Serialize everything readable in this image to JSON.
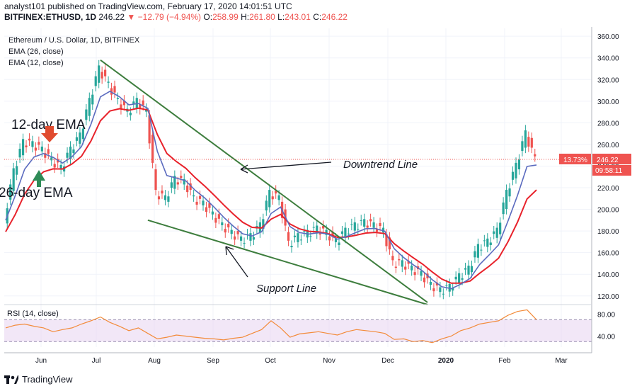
{
  "header": {
    "line1": "analyst101 published on TradingView.com, February 17, 2020 14:01:51 UTC",
    "symbol": "BITFINEX:ETHUSD, 1D",
    "last": "246.22",
    "change": "−12.79 (−4.94%)",
    "o_label": "O:",
    "o": "258.99",
    "h_label": "H:",
    "h": "261.80",
    "l_label": "L:",
    "l": "243.01",
    "c_label": "C:",
    "c": "246.22"
  },
  "legend": {
    "title": "Ethereum / U.S. Dollar, 1D, BITFINEX",
    "ema26": "EMA (26, close)",
    "ema12": "EMA (12, close)",
    "rsi": "RSI (14, close)"
  },
  "annotations": {
    "ema12": "12-day EMA",
    "ema26": "26-day EMA",
    "downtrend": "Downtrend Line",
    "support": "Support Line"
  },
  "price_tags": {
    "pct": "13.73%",
    "price": "246.22",
    "countdown": "09:58:11"
  },
  "branding": "TradingView",
  "colors": {
    "up": "#26a69a",
    "down": "#ef5350",
    "ema12": "#5b6bbf",
    "ema26": "#e8222b",
    "trend": "#3d7d3d",
    "rsi": "#f38b3a",
    "rsi_band": "#e9d7f2"
  },
  "chart_data": {
    "type": "candlestick",
    "title": "Ethereum / U.S. Dollar, 1D, BITFINEX",
    "price_axis": {
      "ticks": [
        120,
        140,
        160,
        180,
        200,
        220,
        240,
        260,
        280,
        300,
        320,
        340,
        360
      ],
      "ylim": [
        112,
        366
      ]
    },
    "x_tick_labels": [
      "Jun",
      "Jul",
      "Aug",
      "Sep",
      "Oct",
      "Nov",
      "Dec",
      "2020",
      "Feb",
      "Mar"
    ],
    "close_series": {
      "description": "approximate daily close (USD), May 2019 to Feb 17 2020, at 5-day steps",
      "values": [
        190,
        235,
        262,
        260,
        255,
        245,
        238,
        255,
        268,
        300,
        330,
        315,
        300,
        290,
        300,
        290,
        215,
        210,
        228,
        225,
        210,
        205,
        195,
        185,
        178,
        172,
        175,
        185,
        215,
        210,
        168,
        175,
        178,
        182,
        178,
        170,
        180,
        185,
        188,
        185,
        180,
        150,
        150,
        145,
        140,
        130,
        125,
        128,
        138,
        145,
        165,
        170,
        180,
        215,
        240,
        270,
        246
      ]
    },
    "ema12_end": 241,
    "ema26_end": 218,
    "rsi_axis": {
      "ticks": [
        40,
        80
      ],
      "ylim": [
        20,
        95
      ],
      "band": [
        30,
        70
      ]
    },
    "rsi_values": [
      55,
      60,
      62,
      58,
      55,
      48,
      52,
      55,
      62,
      68,
      75,
      65,
      58,
      50,
      55,
      45,
      35,
      38,
      42,
      40,
      38,
      36,
      35,
      33,
      36,
      38,
      45,
      52,
      68,
      55,
      38,
      44,
      46,
      48,
      45,
      42,
      48,
      52,
      50,
      48,
      45,
      34,
      35,
      30,
      32,
      28,
      35,
      40,
      50,
      55,
      62,
      65,
      68,
      78,
      85,
      88,
      70
    ],
    "last_price": 246.22
  }
}
